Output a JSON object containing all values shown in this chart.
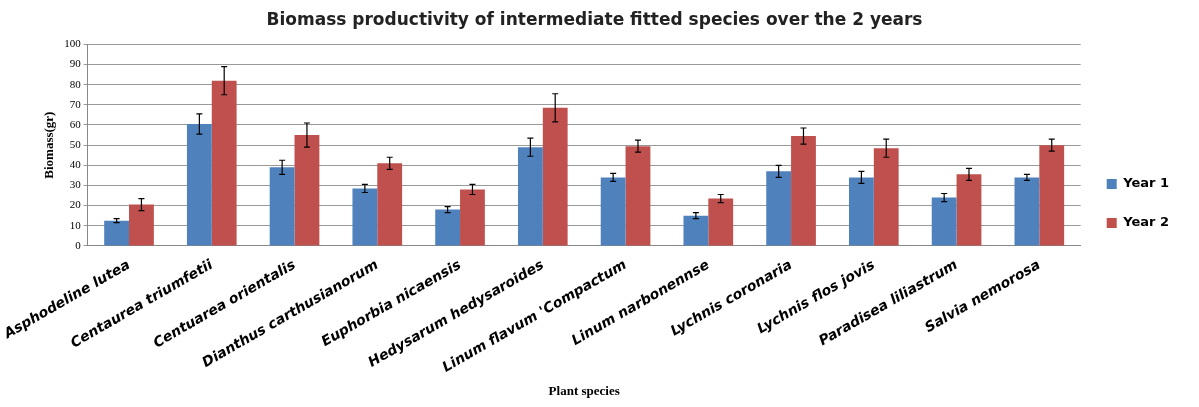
{
  "chart_data": {
    "type": "bar",
    "title": "Biomass productivity of intermediate fitted species over the 2 years",
    "xlabel": "Plant species",
    "ylabel": "Biomass(gr)",
    "categories": [
      "Asphodeline lutea",
      "Centaurea triumfetii",
      "Centuarea orientalis",
      "Dianthus carthusianorum",
      "Euphorbia nicaensis",
      "Hedysarum hedysaroides",
      "Linum flavum 'Compactum",
      "Linum narbonennse",
      "Lychnis coronaria",
      "Lychnis flos jovis",
      "Paradisea liliastrum",
      "Salvia nemorosa"
    ],
    "series": [
      {
        "name": "Year 1",
        "color": "#4f81bd",
        "values": [
          12.5,
          60.5,
          39,
          28.5,
          18,
          49,
          34,
          15,
          37,
          34,
          24,
          34
        ],
        "errors": [
          1,
          5,
          3.5,
          2,
          1.5,
          4.5,
          2,
          1.5,
          3,
          3,
          2,
          1.5
        ]
      },
      {
        "name": "Year 2",
        "color": "#c0504d",
        "values": [
          20.5,
          82,
          55,
          41,
          28,
          68.5,
          49.5,
          23.5,
          54.5,
          48.5,
          35.5,
          50
        ],
        "errors": [
          3,
          7,
          6,
          3,
          2.5,
          7,
          3,
          2,
          4,
          4.5,
          3,
          3
        ]
      }
    ],
    "ylim": [
      0,
      100
    ],
    "yticks": [
      0,
      10,
      20,
      30,
      40,
      50,
      60,
      70,
      80,
      90,
      100
    ],
    "grid": "y",
    "legend": "right"
  }
}
